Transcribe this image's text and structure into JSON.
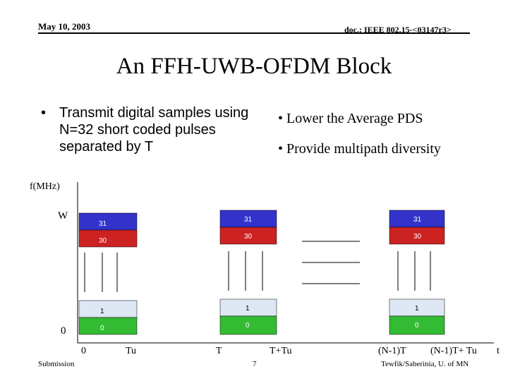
{
  "header": {
    "date": "May 10, 2003",
    "doc": "doc.: IEEE 802.15-<03147r3>"
  },
  "title": "An FFH-UWB-OFDM Block",
  "bullets_left": [
    "Transmit digital samples using N=32 short coded pulses separated by T"
  ],
  "bullets_right": [
    "Lower the Average PDS",
    "Provide multipath diversity"
  ],
  "diagram": {
    "y_axis_label": "f(MHz)",
    "y_top_label": "W",
    "y_bottom_label": "0",
    "x_labels": [
      "0",
      "Tu",
      "T",
      "T+Tu",
      "(N-1)T",
      "(N-1)T+ Tu",
      "t"
    ],
    "blocks": [
      {
        "cells": [
          {
            "label": "31",
            "color": "#3333cc"
          },
          {
            "label": "30",
            "color": "#cc2222"
          },
          {
            "label": "1",
            "color": "#dde8f4"
          },
          {
            "label": "0",
            "color": "#33bb33"
          }
        ]
      },
      {
        "cells": [
          {
            "label": "31",
            "color": "#3333cc"
          },
          {
            "label": "30",
            "color": "#cc2222"
          },
          {
            "label": "1",
            "color": "#dde8f4"
          },
          {
            "label": "0",
            "color": "#33bb33"
          }
        ]
      },
      {
        "cells": [
          {
            "label": "31",
            "color": "#3333cc"
          },
          {
            "label": "30",
            "color": "#cc2222"
          },
          {
            "label": "1",
            "color": "#dde8f4"
          },
          {
            "label": "0",
            "color": "#33bb33"
          }
        ]
      }
    ]
  },
  "footer": {
    "left": "Submission",
    "center": "7",
    "right": "Tewfik/Saberinia, U. of MN"
  }
}
